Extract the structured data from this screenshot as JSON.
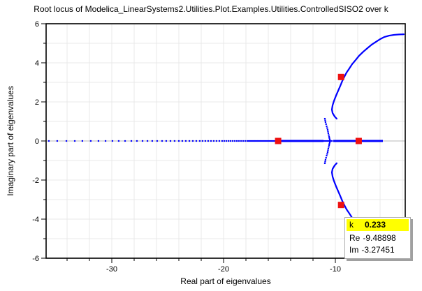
{
  "title": "Root locus of Modelica_LinearSystems2.Utilities.Plot.Examples.Utilities.ControlledSISO2 over k",
  "tooltip": {
    "k_label": "k",
    "k_value": "0.233",
    "re_label": "Re",
    "re_value": "-9.48898",
    "im_label": "Im",
    "im_value": "-3.27451",
    "highlight_color": "#ffff00"
  },
  "chart_data": {
    "type": "scatter",
    "title": "Root locus of Modelica_LinearSystems2.Utilities.Plot.Examples.Utilities.ControlledSISO2 over k",
    "xlabel": "Real part of eigenvalues",
    "ylabel": "Imaginary part of eigenvalues",
    "xlim": [
      -35.875,
      -3.75
    ],
    "ylim": [
      -6,
      6
    ],
    "x_ticks": [
      -34,
      -32,
      -30,
      -28,
      -26,
      -24,
      -22,
      -20,
      -18,
      -16,
      -14,
      -12,
      -10,
      -8,
      -6,
      -4
    ],
    "x_major_ticks": [
      -30,
      -20,
      -10
    ],
    "y_ticks": [
      -6,
      -5,
      -4,
      -3,
      -2,
      -1,
      0,
      1,
      2,
      3,
      4,
      5,
      6
    ],
    "y_major_ticks": [
      -6,
      -4,
      -2,
      0,
      2,
      4,
      6
    ],
    "grid": {
      "x_start": -34,
      "x_end": -4,
      "x_step": 2,
      "y_start": -5,
      "y_end": 5,
      "y_step": 1,
      "color": "#e8e8e8",
      "zero_line_color": "#b8b8b8"
    },
    "series_color": "#0000ff",
    "real_axis_dots_x": [
      -35.63,
      -34.88,
      -34.06,
      -33.31,
      -32.63,
      -31.88,
      -31.19,
      -30.56,
      -29.94,
      -29.38,
      -28.81,
      -28.25,
      -27.75,
      -27.25,
      -26.81,
      -26.38,
      -25.94,
      -25.5,
      -25.13,
      -24.75,
      -24.38,
      -24,
      -23.69,
      -23.38,
      -23.06,
      -22.75,
      -22.44,
      -22.13,
      -21.88,
      -21.63,
      -21.38,
      -21.13,
      -20.88,
      -20.63,
      -20.38,
      -20.13,
      -19.94,
      -19.75,
      -19.56,
      -19.38,
      -19.19,
      -19,
      -18.81,
      -18.63,
      -18.44,
      -18.25,
      -18.06,
      -17.88,
      -17.75,
      -17.63,
      -17.5,
      -17.38,
      -17.25,
      -17.13,
      -17,
      -16.88,
      -16.75,
      -16.63,
      -16.5,
      -16.38,
      -16.25,
      -16.13,
      -16,
      -15.88,
      -15.75,
      -15.63,
      -15.5,
      -15.38
    ],
    "solid_segments_x": [
      [
        -15.31,
        -11.06
      ],
      [
        -10.19,
        -5.75
      ]
    ],
    "gap_dots_x": [
      -11,
      -10.88,
      -10.75,
      -10.63,
      -10.5,
      -10.38,
      -10.31
    ],
    "branch_upper": [
      [
        -9.88,
        1.14
      ],
      [
        -10.06,
        1.25
      ],
      [
        -10.25,
        1.43
      ],
      [
        -10.31,
        1.61
      ],
      [
        -10.25,
        1.82
      ],
      [
        -10.13,
        2.04
      ],
      [
        -9.94,
        2.32
      ],
      [
        -9.75,
        2.57
      ],
      [
        -9.56,
        2.82
      ],
      [
        -9.38,
        3.07
      ],
      [
        -9.19,
        3.29
      ],
      [
        -9,
        3.5
      ],
      [
        -8.75,
        3.71
      ],
      [
        -8.5,
        3.93
      ],
      [
        -8.19,
        4.14
      ],
      [
        -7.88,
        4.36
      ],
      [
        -7.5,
        4.57
      ],
      [
        -7.13,
        4.75
      ],
      [
        -6.75,
        4.93
      ],
      [
        -6.38,
        5.07
      ],
      [
        -6,
        5.21
      ],
      [
        -5.63,
        5.32
      ],
      [
        -5.19,
        5.39
      ],
      [
        -4.75,
        5.43
      ],
      [
        -4.31,
        5.45
      ],
      [
        -3.88,
        5.46
      ]
    ],
    "breakaway_arc_upper": [
      [
        -10.94,
        1.14
      ],
      [
        -10.91,
        1.05
      ],
      [
        -10.88,
        0.96
      ],
      [
        -10.83,
        0.86
      ],
      [
        -10.78,
        0.75
      ],
      [
        -10.73,
        0.66
      ],
      [
        -10.69,
        0.57
      ],
      [
        -10.66,
        0.48
      ],
      [
        -10.63,
        0.39
      ],
      [
        -10.59,
        0.3
      ],
      [
        -10.56,
        0.21
      ],
      [
        -10.53,
        0.14
      ],
      [
        -10.5,
        0.07
      ]
    ],
    "symmetric_about_x_axis": true,
    "markers": {
      "shape": "square",
      "size": 9,
      "color": "#ee1111",
      "points": [
        [
          -15.12,
          0
        ],
        [
          -7.91,
          0
        ],
        [
          -9.48898,
          3.27451
        ],
        [
          -9.48898,
          -3.27451
        ]
      ]
    },
    "selected_point": {
      "k": 0.233,
      "re": -9.48898,
      "im": -3.27451
    }
  }
}
